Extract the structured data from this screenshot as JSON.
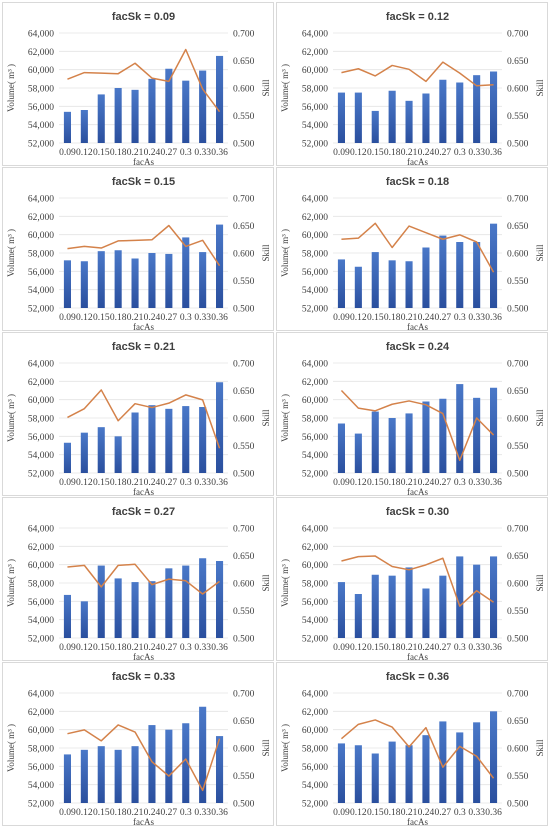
{
  "colors": {
    "bar_top": "#4a78c8",
    "bar_bottom": "#2a4f9e",
    "line": "#d4824a",
    "gridline": "#e4e4e4",
    "border": "#d9d9d9"
  },
  "common": {
    "xlabel": "facAs",
    "ylabel_left": "Volume( m³ )",
    "ylabel_right": "Skill",
    "categories": [
      "0.09",
      "0.12",
      "0.15",
      "0.18",
      "0.21",
      "0.24",
      "0.27",
      "0.3",
      "0.33",
      "0.36"
    ],
    "left_ticks": [
      "52,000",
      "54,000",
      "56,000",
      "58,000",
      "60,000",
      "62,000",
      "64,000"
    ],
    "right_ticks": [
      "0.500",
      "0.550",
      "0.600",
      "0.650",
      "0.700"
    ]
  },
  "chart_data": [
    {
      "type": "bar",
      "title": "facSk = 0.09",
      "xlabel": "facAs",
      "ylabel": "Volume( m³ )",
      "y2label": "Skill",
      "ylim": [
        52000,
        64000
      ],
      "y2lim": [
        0.5,
        0.7
      ],
      "categories": [
        "0.09",
        "0.12",
        "0.15",
        "0.18",
        "0.21",
        "0.24",
        "0.27",
        "0.3",
        "0.33",
        "0.36"
      ],
      "series": [
        {
          "type": "bar",
          "axis": "left",
          "values": [
            55400,
            55600,
            57300,
            58000,
            57800,
            59000,
            60100,
            58800,
            59900,
            61500
          ]
        },
        {
          "type": "line",
          "axis": "right",
          "values": [
            0.616,
            0.628,
            0.627,
            0.626,
            0.645,
            0.618,
            0.612,
            0.67,
            0.598,
            0.557
          ]
        }
      ]
    },
    {
      "type": "bar",
      "title": "facSk = 0.12",
      "xlabel": "facAs",
      "ylabel": "Volume( m³ )",
      "y2label": "Skill",
      "ylim": [
        52000,
        64000
      ],
      "y2lim": [
        0.5,
        0.7
      ],
      "categories": [
        "0.09",
        "0.12",
        "0.15",
        "0.18",
        "0.21",
        "0.24",
        "0.27",
        "0.3",
        "0.33",
        "0.36"
      ],
      "series": [
        {
          "type": "bar",
          "axis": "left",
          "values": [
            57500,
            57500,
            55500,
            57700,
            56600,
            57400,
            58900,
            58600,
            59400,
            59800
          ]
        },
        {
          "type": "line",
          "axis": "right",
          "values": [
            0.628,
            0.635,
            0.622,
            0.641,
            0.634,
            0.612,
            0.647,
            0.627,
            0.604,
            0.606
          ]
        }
      ]
    },
    {
      "type": "bar",
      "title": "facSk = 0.15",
      "xlabel": "facAs",
      "ylabel": "Volume( m³ )",
      "y2label": "Skill",
      "ylim": [
        52000,
        64000
      ],
      "y2lim": [
        0.5,
        0.7
      ],
      "categories": [
        "0.09",
        "0.12",
        "0.15",
        "0.18",
        "0.21",
        "0.24",
        "0.27",
        "0.3",
        "0.33",
        "0.36"
      ],
      "series": [
        {
          "type": "bar",
          "axis": "left",
          "values": [
            57200,
            57100,
            58200,
            58300,
            57400,
            58000,
            57900,
            59700,
            58100,
            61100
          ]
        },
        {
          "type": "line",
          "axis": "right",
          "values": [
            0.608,
            0.612,
            0.609,
            0.622,
            0.623,
            0.624,
            0.65,
            0.612,
            0.623,
            0.577
          ]
        }
      ]
    },
    {
      "type": "bar",
      "title": "facSk = 0.18",
      "xlabel": "facAs",
      "ylabel": "Volume( m³ )",
      "y2label": "Skill",
      "ylim": [
        52000,
        64000
      ],
      "y2lim": [
        0.5,
        0.7
      ],
      "categories": [
        "0.09",
        "0.12",
        "0.15",
        "0.18",
        "0.21",
        "0.24",
        "0.27",
        "0.3",
        "0.33",
        "0.36"
      ],
      "series": [
        {
          "type": "bar",
          "axis": "left",
          "values": [
            57300,
            56500,
            58100,
            57200,
            57100,
            58600,
            59900,
            59200,
            59200,
            61200
          ]
        },
        {
          "type": "line",
          "axis": "right",
          "values": [
            0.625,
            0.627,
            0.654,
            0.61,
            0.649,
            0.637,
            0.625,
            0.633,
            0.62,
            0.565
          ]
        }
      ]
    },
    {
      "type": "bar",
      "title": "facSk = 0.21",
      "xlabel": "facAs",
      "ylabel": "Volume( m³ )",
      "y2label": "Skill",
      "ylim": [
        52000,
        64000
      ],
      "y2lim": [
        0.5,
        0.7
      ],
      "categories": [
        "0.09",
        "0.12",
        "0.15",
        "0.18",
        "0.21",
        "0.24",
        "0.27",
        "0.3",
        "0.33",
        "0.36"
      ],
      "series": [
        {
          "type": "bar",
          "axis": "left",
          "values": [
            55300,
            56400,
            57000,
            56000,
            58600,
            59400,
            59000,
            59300,
            59200,
            61900
          ]
        },
        {
          "type": "line",
          "axis": "right",
          "values": [
            0.601,
            0.617,
            0.651,
            0.595,
            0.626,
            0.619,
            0.627,
            0.642,
            0.633,
            0.545
          ]
        }
      ]
    },
    {
      "type": "bar",
      "title": "facSk = 0.24",
      "xlabel": "facAs",
      "ylabel": "Volume( m³ )",
      "y2label": "Skill",
      "ylim": [
        52000,
        64000
      ],
      "y2lim": [
        0.5,
        0.7
      ],
      "categories": [
        "0.09",
        "0.12",
        "0.15",
        "0.18",
        "0.21",
        "0.24",
        "0.27",
        "0.3",
        "0.33",
        "0.36"
      ],
      "series": [
        {
          "type": "bar",
          "axis": "left",
          "values": [
            57400,
            56300,
            58700,
            58000,
            58500,
            59800,
            60100,
            61700,
            60200,
            61300
          ]
        },
        {
          "type": "line",
          "axis": "right",
          "values": [
            0.65,
            0.618,
            0.613,
            0.625,
            0.631,
            0.624,
            0.608,
            0.523,
            0.6,
            0.569
          ]
        }
      ]
    },
    {
      "type": "bar",
      "title": "facSk = 0.27",
      "xlabel": "facAs",
      "ylabel": "Volume( m³ )",
      "y2label": "Skill",
      "ylim": [
        52000,
        64000
      ],
      "y2lim": [
        0.5,
        0.7
      ],
      "categories": [
        "0.09",
        "0.12",
        "0.15",
        "0.18",
        "0.21",
        "0.24",
        "0.27",
        "0.3",
        "0.33",
        "0.36"
      ],
      "series": [
        {
          "type": "bar",
          "axis": "left",
          "values": [
            56700,
            56000,
            59900,
            58500,
            58100,
            58200,
            59600,
            59900,
            60700,
            60400
          ]
        },
        {
          "type": "line",
          "axis": "right",
          "values": [
            0.629,
            0.632,
            0.593,
            0.632,
            0.634,
            0.597,
            0.607,
            0.604,
            0.58,
            0.603
          ]
        }
      ]
    },
    {
      "type": "bar",
      "title": "facSk = 0.30",
      "xlabel": "facAs",
      "ylabel": "Volume( m³ )",
      "y2label": "Skill",
      "ylim": [
        52000,
        64000
      ],
      "y2lim": [
        0.5,
        0.7
      ],
      "categories": [
        "0.09",
        "0.12",
        "0.15",
        "0.18",
        "0.21",
        "0.24",
        "0.27",
        "0.3",
        "0.33",
        "0.36"
      ],
      "series": [
        {
          "type": "bar",
          "axis": "left",
          "values": [
            58100,
            56800,
            58900,
            58800,
            59700,
            57400,
            58800,
            60900,
            60000,
            60900
          ]
        },
        {
          "type": "line",
          "axis": "right",
          "values": [
            0.64,
            0.648,
            0.649,
            0.63,
            0.624,
            0.633,
            0.645,
            0.558,
            0.586,
            0.565
          ]
        }
      ]
    },
    {
      "type": "bar",
      "title": "facSk = 0.33",
      "xlabel": "facAs",
      "ylabel": "Volume( m³ )",
      "y2label": "Skill",
      "ylim": [
        52000,
        64000
      ],
      "y2lim": [
        0.5,
        0.7
      ],
      "categories": [
        "0.09",
        "0.12",
        "0.15",
        "0.18",
        "0.21",
        "0.24",
        "0.27",
        "0.3",
        "0.33",
        "0.36"
      ],
      "series": [
        {
          "type": "bar",
          "axis": "left",
          "values": [
            57300,
            57800,
            58200,
            57800,
            58200,
            60500,
            60000,
            60700,
            62500,
            59300
          ]
        },
        {
          "type": "line",
          "axis": "right",
          "values": [
            0.626,
            0.633,
            0.613,
            0.642,
            0.629,
            0.575,
            0.549,
            0.58,
            0.523,
            0.617
          ]
        }
      ]
    },
    {
      "type": "bar",
      "title": "facSk = 0.36",
      "xlabel": "facAs",
      "ylabel": "Volume( m³ )",
      "y2label": "Skill",
      "ylim": [
        52000,
        64000
      ],
      "y2lim": [
        0.5,
        0.7
      ],
      "categories": [
        "0.09",
        "0.12",
        "0.15",
        "0.18",
        "0.21",
        "0.24",
        "0.27",
        "0.3",
        "0.33",
        "0.36"
      ],
      "series": [
        {
          "type": "bar",
          "axis": "left",
          "values": [
            58500,
            58300,
            57400,
            58700,
            58300,
            59400,
            60900,
            59700,
            60800,
            62000
          ]
        },
        {
          "type": "line",
          "axis": "right",
          "values": [
            0.617,
            0.643,
            0.651,
            0.638,
            0.602,
            0.637,
            0.565,
            0.603,
            0.585,
            0.545
          ]
        }
      ]
    }
  ]
}
